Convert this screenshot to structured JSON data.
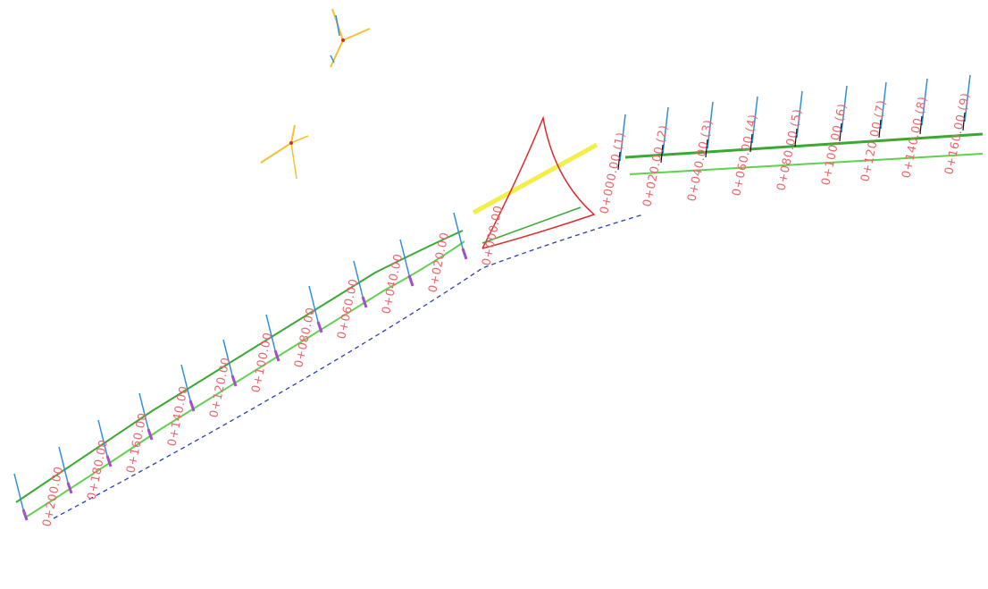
{
  "colors": {
    "station_label": "#e8676f",
    "centerline": "#3aa832",
    "offset_line": "#5fd14e",
    "baseline_dash": "#2b3fb0",
    "section_tick": "#2e8fd8",
    "highlight": "#f2ee4a",
    "red_edge": "#d92b2b",
    "annotation": "#111111",
    "marker": "#a34fc7",
    "north_arrow": "#f2c230"
  },
  "icons": [
    "north-arrow-icon",
    "north-arrow-icon"
  ],
  "left_stations": [
    {
      "label": "0+000.00"
    },
    {
      "label": "0+020.00"
    },
    {
      "label": "0+040.00"
    },
    {
      "label": "0+060.00"
    },
    {
      "label": "0+080.00"
    },
    {
      "label": "0+100.00"
    },
    {
      "label": "0+120.00"
    },
    {
      "label": "0+140.00"
    },
    {
      "label": "0+160.00"
    },
    {
      "label": "0+180.00"
    },
    {
      "label": "0+200.00"
    }
  ],
  "right_stations": [
    {
      "label": "0+000.00 (1)"
    },
    {
      "label": "0+020.00 (2)"
    },
    {
      "label": "0+040.00 (3)"
    },
    {
      "label": "0+060.00 (4)"
    },
    {
      "label": "0+080.00 (5)"
    },
    {
      "label": "0+100.00 (6)"
    },
    {
      "label": "0+120.00 (7)"
    },
    {
      "label": "0+140.00 (8)"
    },
    {
      "label": "0+160.00 (9)"
    }
  ]
}
